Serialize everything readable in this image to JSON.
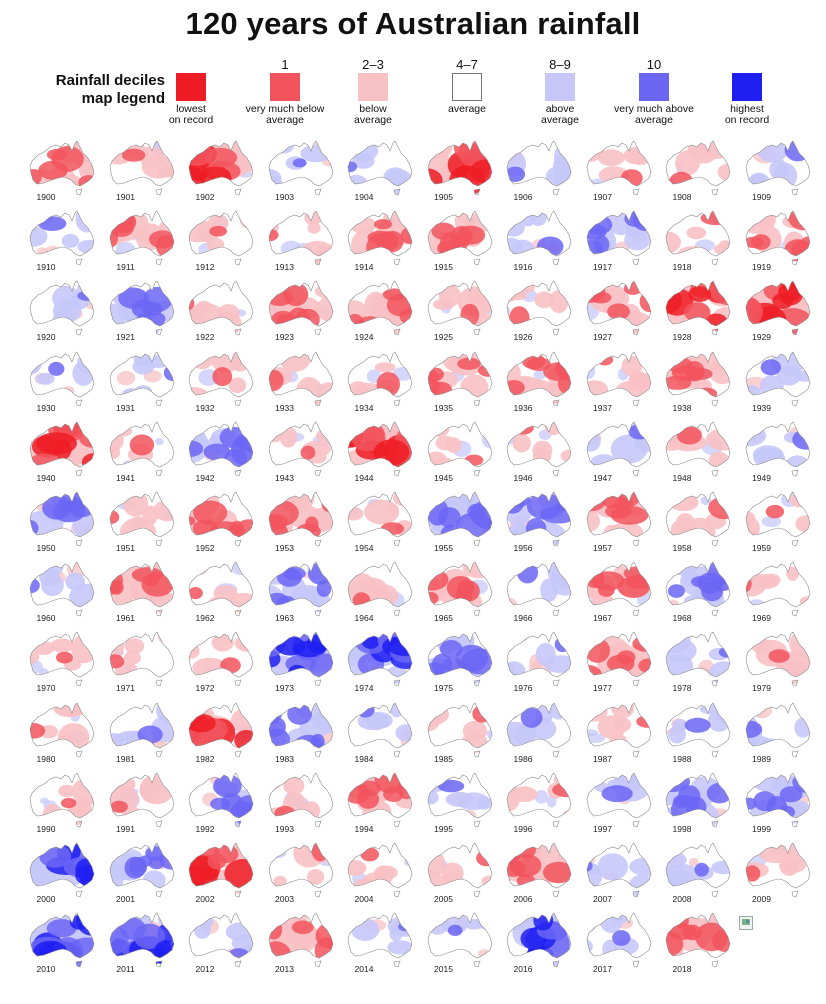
{
  "title": "120 years of Australian rainfall",
  "legend": {
    "heading_line1": "Rainfall deciles",
    "heading_line2": "map legend",
    "items": [
      {
        "decile": "",
        "line1": "lowest",
        "line2": "on record",
        "color": "#ee1c24"
      },
      {
        "decile": "1",
        "line1": "very much below",
        "line2": "average",
        "color": "#f2545d"
      },
      {
        "decile": "2–3",
        "line1": "below",
        "line2": "average",
        "color": "#f8c1c4"
      },
      {
        "decile": "4–7",
        "line1": "average",
        "line2": "",
        "color": "#ffffff"
      },
      {
        "decile": "8–9",
        "line1": "above",
        "line2": "average",
        "color": "#c7c8f9"
      },
      {
        "decile": "10",
        "line1": "very much above",
        "line2": "average",
        "color": "#6b66f4"
      },
      {
        "decile": "",
        "line1": "highest",
        "line2": "on record",
        "color": "#1f1ff2"
      }
    ]
  },
  "maps": [
    {
      "year": "1900",
      "level": -2
    },
    {
      "year": "1901",
      "level": -1
    },
    {
      "year": "1902",
      "level": -3
    },
    {
      "year": "1903",
      "level": 1
    },
    {
      "year": "1904",
      "level": 1
    },
    {
      "year": "1905",
      "level": -3
    },
    {
      "year": "1906",
      "level": 1
    },
    {
      "year": "1907",
      "level": -1
    },
    {
      "year": "1908",
      "level": -1
    },
    {
      "year": "1909",
      "level": 1
    },
    {
      "year": "1910",
      "level": 1
    },
    {
      "year": "1911",
      "level": -2
    },
    {
      "year": "1912",
      "level": -1
    },
    {
      "year": "1913",
      "level": -1
    },
    {
      "year": "1914",
      "level": -2
    },
    {
      "year": "1915",
      "level": -2
    },
    {
      "year": "1916",
      "level": 1
    },
    {
      "year": "1917",
      "level": 2
    },
    {
      "year": "1918",
      "level": -1
    },
    {
      "year": "1919",
      "level": -2
    },
    {
      "year": "1920",
      "level": 1
    },
    {
      "year": "1921",
      "level": 2
    },
    {
      "year": "1922",
      "level": -1
    },
    {
      "year": "1923",
      "level": -2
    },
    {
      "year": "1924",
      "level": -2
    },
    {
      "year": "1925",
      "level": -1
    },
    {
      "year": "1926",
      "level": -1
    },
    {
      "year": "1927",
      "level": -2
    },
    {
      "year": "1928",
      "level": -3
    },
    {
      "year": "1929",
      "level": -3
    },
    {
      "year": "1930",
      "level": 1
    },
    {
      "year": "1931",
      "level": 1
    },
    {
      "year": "1932",
      "level": -1
    },
    {
      "year": "1933",
      "level": -1
    },
    {
      "year": "1934",
      "level": -1
    },
    {
      "year": "1935",
      "level": -2
    },
    {
      "year": "1936",
      "level": -2
    },
    {
      "year": "1937",
      "level": -1
    },
    {
      "year": "1938",
      "level": -2
    },
    {
      "year": "1939",
      "level": 1
    },
    {
      "year": "1940",
      "level": -3
    },
    {
      "year": "1941",
      "level": -1
    },
    {
      "year": "1942",
      "level": 2
    },
    {
      "year": "1943",
      "level": -1
    },
    {
      "year": "1944",
      "level": -3
    },
    {
      "year": "1945",
      "level": -1
    },
    {
      "year": "1946",
      "level": -1
    },
    {
      "year": "1947",
      "level": 1
    },
    {
      "year": "1948",
      "level": -1
    },
    {
      "year": "1949",
      "level": 1
    },
    {
      "year": "1950",
      "level": 2
    },
    {
      "year": "1951",
      "level": -1
    },
    {
      "year": "1952",
      "level": -2
    },
    {
      "year": "1953",
      "level": -2
    },
    {
      "year": "1954",
      "level": -1
    },
    {
      "year": "1955",
      "level": 2
    },
    {
      "year": "1956",
      "level": 2
    },
    {
      "year": "1957",
      "level": -2
    },
    {
      "year": "1958",
      "level": -1
    },
    {
      "year": "1959",
      "level": -1
    },
    {
      "year": "1960",
      "level": 1
    },
    {
      "year": "1961",
      "level": -2
    },
    {
      "year": "1962",
      "level": -1
    },
    {
      "year": "1963",
      "level": 2
    },
    {
      "year": "1964",
      "level": -1
    },
    {
      "year": "1965",
      "level": -2
    },
    {
      "year": "1966",
      "level": 1
    },
    {
      "year": "1967",
      "level": -2
    },
    {
      "year": "1968",
      "level": 2
    },
    {
      "year": "1969",
      "level": -1
    },
    {
      "year": "1970",
      "level": -1
    },
    {
      "year": "1971",
      "level": -1
    },
    {
      "year": "1972",
      "level": -1
    },
    {
      "year": "1973",
      "level": 3
    },
    {
      "year": "1974",
      "level": 3
    },
    {
      "year": "1975",
      "level": 2
    },
    {
      "year": "1976",
      "level": 1
    },
    {
      "year": "1977",
      "level": -2
    },
    {
      "year": "1978",
      "level": 1
    },
    {
      "year": "1979",
      "level": -1
    },
    {
      "year": "1980",
      "level": -1
    },
    {
      "year": "1981",
      "level": 1
    },
    {
      "year": "1982",
      "level": -3
    },
    {
      "year": "1983",
      "level": 2
    },
    {
      "year": "1984",
      "level": 1
    },
    {
      "year": "1985",
      "level": -1
    },
    {
      "year": "1986",
      "level": 1
    },
    {
      "year": "1987",
      "level": -1
    },
    {
      "year": "1988",
      "level": 1
    },
    {
      "year": "1989",
      "level": 1
    },
    {
      "year": "1990",
      "level": -1
    },
    {
      "year": "1991",
      "level": -1
    },
    {
      "year": "1992",
      "level": 2
    },
    {
      "year": "1993",
      "level": -1
    },
    {
      "year": "1994",
      "level": -2
    },
    {
      "year": "1995",
      "level": 1
    },
    {
      "year": "1996",
      "level": -1
    },
    {
      "year": "1997",
      "level": 1
    },
    {
      "year": "1998",
      "level": 2
    },
    {
      "year": "1999",
      "level": 2
    },
    {
      "year": "2000",
      "level": 3
    },
    {
      "year": "2001",
      "level": 2
    },
    {
      "year": "2002",
      "level": -3
    },
    {
      "year": "2003",
      "level": -1
    },
    {
      "year": "2004",
      "level": -1
    },
    {
      "year": "2005",
      "level": -1
    },
    {
      "year": "2006",
      "level": -2
    },
    {
      "year": "2007",
      "level": 1
    },
    {
      "year": "2008",
      "level": 1
    },
    {
      "year": "2009",
      "level": -1
    },
    {
      "year": "2010",
      "level": 3
    },
    {
      "year": "2011",
      "level": 3
    },
    {
      "year": "2012",
      "level": 1
    },
    {
      "year": "2013",
      "level": -2
    },
    {
      "year": "2014",
      "level": 1
    },
    {
      "year": "2015",
      "level": 1
    },
    {
      "year": "2016",
      "level": 3
    },
    {
      "year": "2017",
      "level": 1
    },
    {
      "year": "2018",
      "level": -2
    }
  ]
}
